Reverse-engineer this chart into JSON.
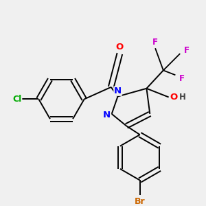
{
  "background_color": "#f0f0f0",
  "bond_color": "#000000",
  "atom_colors": {
    "N": "#0000ff",
    "O": "#ff0000",
    "F": "#cc00cc",
    "Cl": "#00aa00",
    "Br": "#cc6600",
    "C": "#000000",
    "H": "#444444"
  },
  "figsize": [
    3.0,
    3.0
  ],
  "dpi": 100
}
